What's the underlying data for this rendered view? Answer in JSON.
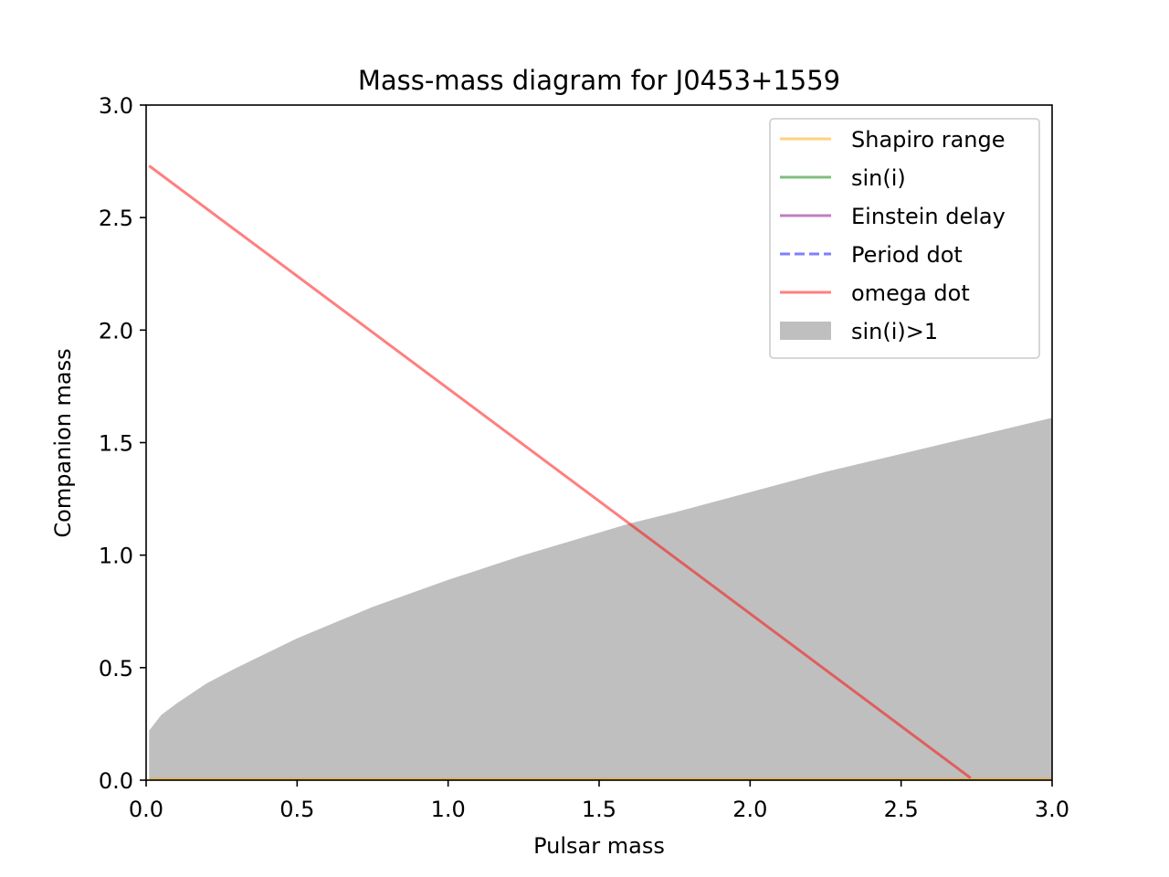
{
  "chart_data": {
    "type": "line",
    "title": "Mass-mass diagram for J0453+1559",
    "xlabel": "Pulsar mass",
    "ylabel": "Companion mass",
    "xlim": [
      0.0,
      3.0
    ],
    "ylim": [
      0.0,
      3.0
    ],
    "xticks": [
      "0.0",
      "0.5",
      "1.0",
      "1.5",
      "2.0",
      "2.5",
      "3.0"
    ],
    "yticks": [
      "0.0",
      "0.5",
      "1.0",
      "1.5",
      "2.0",
      "2.5",
      "3.0"
    ],
    "grid": false,
    "legend_position": "upper right",
    "series": [
      {
        "name": "Shapiro range",
        "color": "#ffa500",
        "style": "solid",
        "alpha": 0.5,
        "x": [
          0.01,
          3.0
        ],
        "y": [
          0.005,
          0.005
        ]
      },
      {
        "name": "sin(i)",
        "color": "#008000",
        "style": "solid",
        "alpha": 0.5,
        "x": [],
        "y": []
      },
      {
        "name": "Einstein delay",
        "color": "#800080",
        "style": "solid",
        "alpha": 0.5,
        "x": [],
        "y": []
      },
      {
        "name": "Period dot",
        "color": "#0000ff",
        "style": "dashed",
        "alpha": 0.5,
        "x": [],
        "y": []
      },
      {
        "name": "omega dot",
        "color": "#ff0000",
        "style": "solid",
        "alpha": 0.5,
        "x": [
          0.01,
          2.73
        ],
        "y": [
          2.73,
          0.01
        ]
      },
      {
        "name": "sin(i)>1",
        "color": "#808080",
        "style": "fill",
        "alpha": 0.5,
        "x": [
          0.01,
          0.05,
          0.1,
          0.2,
          0.3,
          0.5,
          0.75,
          1.0,
          1.25,
          1.5,
          1.6,
          1.75,
          2.0,
          2.25,
          2.5,
          2.75,
          3.0
        ],
        "y": [
          0.22,
          0.29,
          0.34,
          0.43,
          0.5,
          0.63,
          0.77,
          0.89,
          1.0,
          1.1,
          1.14,
          1.19,
          1.28,
          1.37,
          1.45,
          1.53,
          1.61
        ]
      }
    ]
  }
}
